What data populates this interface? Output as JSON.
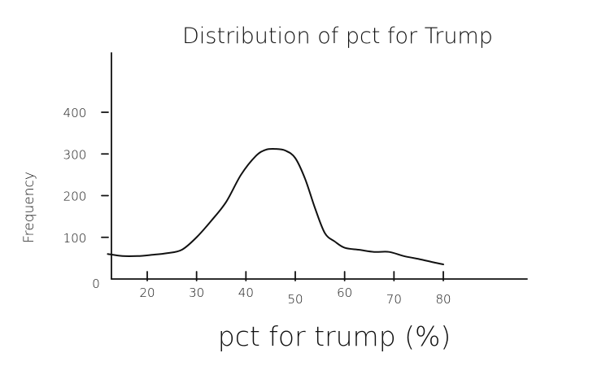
{
  "chart_data": {
    "type": "line",
    "title": "Distribution of pct for Trump",
    "xlabel": "pct for trump (%)",
    "ylabel": "Frequency",
    "x_ticks": [
      "20",
      "30",
      "40",
      "50",
      "60",
      "70",
      "80"
    ],
    "y_ticks": [
      "0",
      "100",
      "200",
      "300",
      "400"
    ],
    "xlim": [
      10,
      100
    ],
    "ylim": [
      0,
      540
    ],
    "grid": false,
    "series": [
      {
        "x": [
          12,
          15,
          18,
          21,
          24,
          27,
          30,
          33,
          36,
          39,
          42,
          44,
          46,
          48,
          50,
          52,
          54,
          56,
          58,
          60,
          63,
          66,
          69,
          72,
          75,
          78,
          80
        ],
        "values": [
          60,
          55,
          55,
          58,
          62,
          70,
          100,
          140,
          185,
          250,
          295,
          310,
          312,
          308,
          290,
          240,
          170,
          110,
          90,
          75,
          70,
          65,
          65,
          55,
          48,
          40,
          35
        ]
      }
    ]
  }
}
